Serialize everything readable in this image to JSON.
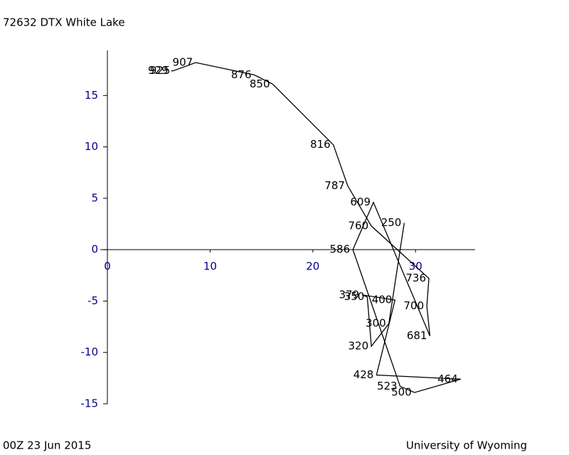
{
  "chart_data": {
    "type": "line",
    "title": "72632 DTX White Lake",
    "annotations": [
      "00Z 23 Jun 2015",
      "University of Wyoming"
    ],
    "labels": [
      "929",
      "925",
      "907",
      "876",
      "850",
      "816",
      "787",
      "760",
      "736",
      "700",
      "681",
      "609",
      "586",
      "523",
      "500",
      "464",
      "428",
      "400",
      "379",
      "350",
      "320",
      "300",
      "250"
    ],
    "x": [
      6.2,
      6.4,
      8.6,
      14.3,
      16.1,
      22.0,
      23.4,
      25.7,
      31.3,
      31.1,
      31.4,
      25.9,
      23.9,
      28.5,
      29.9,
      34.4,
      26.2,
      28.0,
      24.8,
      25.3,
      25.7,
      27.4,
      28.9
    ],
    "y": [
      17.4,
      17.4,
      18.2,
      17.0,
      16.1,
      10.2,
      6.2,
      2.3,
      -2.8,
      -5.5,
      -8.4,
      4.6,
      0.0,
      -13.3,
      -13.9,
      -12.6,
      -12.2,
      -4.9,
      -4.4,
      -4.6,
      -9.4,
      -7.2,
      2.6
    ],
    "color": "#000000",
    "axis_color": "#00008b",
    "xlim": [
      0,
      35.8
    ],
    "ylim": [
      -15,
      19.4
    ],
    "xticks": [
      0,
      10,
      20,
      30
    ],
    "yticks": [
      -15,
      -10,
      -5,
      0,
      5,
      10,
      15
    ]
  }
}
